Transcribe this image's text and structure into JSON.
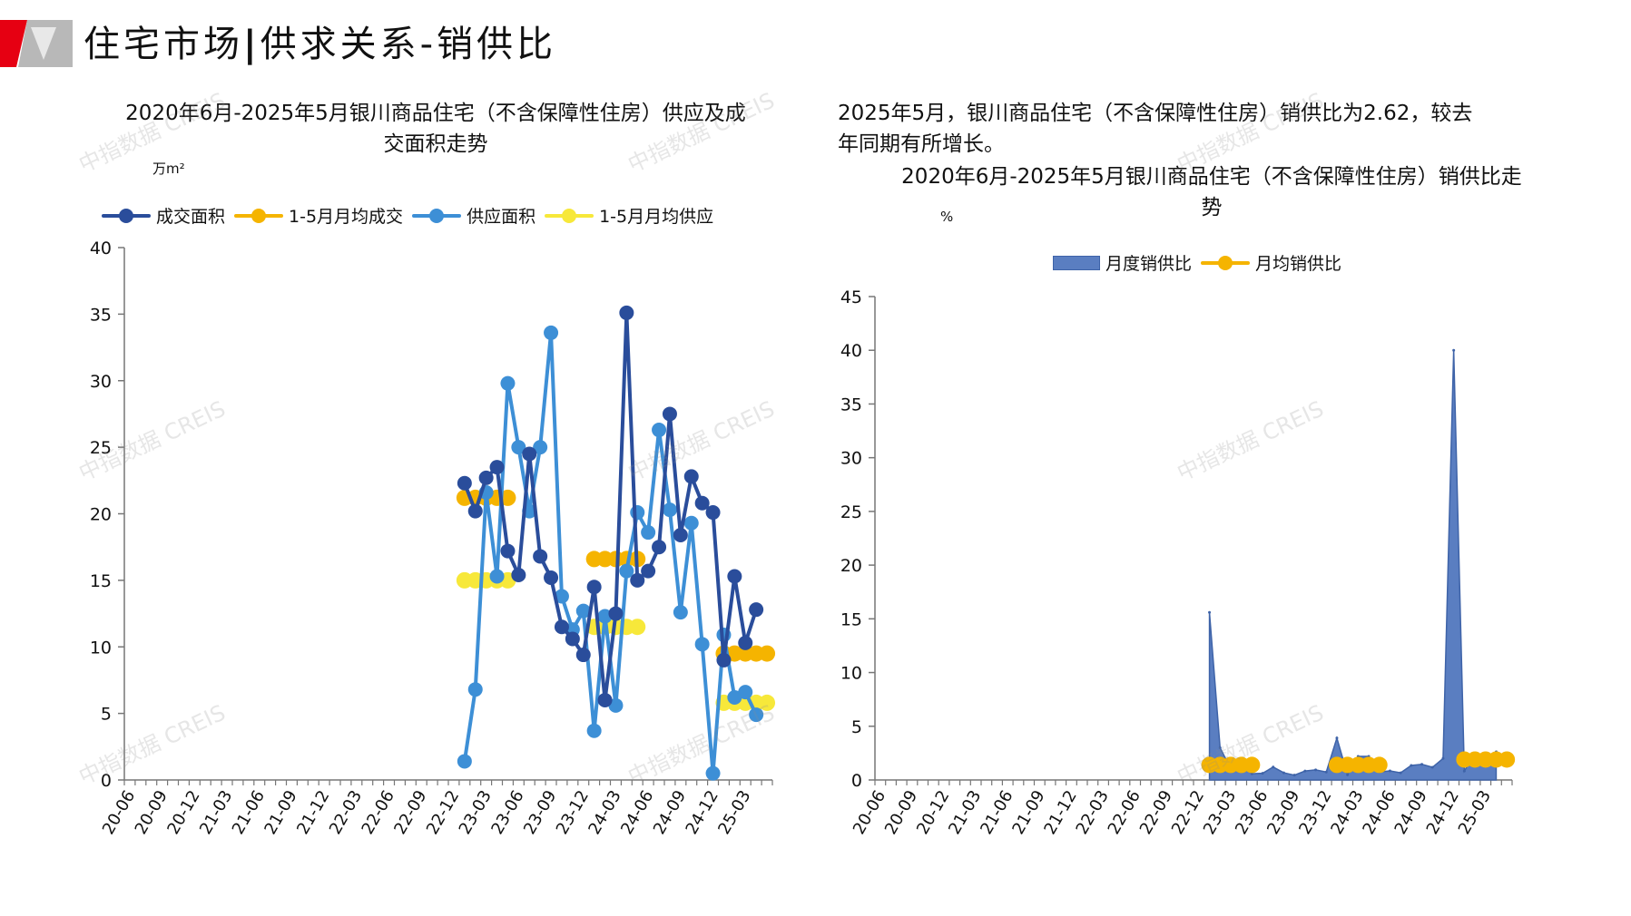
{
  "page": {
    "title_part1": "住宅市场",
    "title_sep": "|",
    "title_part2": "供求关系-销供比"
  },
  "watermark_text": "中指数据 CREIS",
  "left_chart": {
    "title_line1": "2020年6月-2025年5月银川商品住宅（不含保障性住房）供应及成",
    "title_line2": "交面积走势",
    "unit": "万m²"
  },
  "right_chart": {
    "summary_line1": "2025年5月，银川商品住宅（不含保障性住房）销供比为2.62，较去",
    "summary_line2": "年同期有所增长。",
    "title_line1": "2020年6月-2025年5月银川商品住宅（不含保障性住房）销供比走",
    "title_line2": "势",
    "unit": "%"
  },
  "colors": {
    "deal": "#2a4d9b",
    "supply": "#3d8fd6",
    "avg_deal": "#f5b400",
    "avg_supply": "#f7e83a",
    "ratio_fill": "#5a7ec1",
    "ratio_avg": "#f5b400"
  },
  "chart_data": [
    {
      "type": "line",
      "id": "supply-deal",
      "title": "2020年6月-2025年5月银川商品住宅（不含保障性住房）供应及成交面积走势",
      "ylabel": "万m²",
      "ylim": [
        0,
        40
      ],
      "yticks": [
        0,
        5,
        10,
        15,
        20,
        25,
        30,
        35,
        40
      ],
      "x_labels": [
        "20-06",
        "20-09",
        "20-12",
        "21-03",
        "21-06",
        "21-09",
        "21-12",
        "22-03",
        "22-06",
        "22-09",
        "22-12",
        "23-03",
        "23-06",
        "23-09",
        "23-12",
        "24-03",
        "24-06",
        "24-09",
        "24-12",
        "25-03"
      ],
      "x_label_start": 0,
      "x_label_step": 3,
      "n_points": 60,
      "data_start_index": 31,
      "series": [
        {
          "name": "成交面积",
          "values": [
            22.3,
            20.2,
            22.7,
            23.5,
            17.2,
            15.4,
            24.5,
            16.8,
            15.2,
            11.5,
            10.6,
            9.4,
            14.5,
            6.0,
            12.5,
            35.1,
            15.0,
            15.7,
            17.5,
            27.5,
            18.4,
            22.8,
            20.8,
            20.1,
            9.0,
            15.3,
            10.3,
            12.8
          ]
        },
        {
          "name": "供应面积",
          "values": [
            1.4,
            6.8,
            21.6,
            15.3,
            29.8,
            25.0,
            20.2,
            25.0,
            33.6,
            13.8,
            11.3,
            12.7,
            3.7,
            12.3,
            5.6,
            15.7,
            20.1,
            18.6,
            26.3,
            20.3,
            12.6,
            19.3,
            10.2,
            0.5,
            10.9,
            6.2,
            6.6,
            4.9
          ]
        },
        {
          "name": "1-5月月均成交",
          "segments": [
            {
              "start": 31,
              "end": 35,
              "value": 21.2
            },
            {
              "start": 43,
              "end": 47,
              "value": 16.6
            },
            {
              "start": 55,
              "end": 59,
              "value": 9.5
            }
          ]
        },
        {
          "name": "1-5月月均供应",
          "segments": [
            {
              "start": 31,
              "end": 35,
              "value": 15.0
            },
            {
              "start": 43,
              "end": 47,
              "value": 11.5
            },
            {
              "start": 55,
              "end": 59,
              "value": 5.8
            }
          ]
        }
      ]
    },
    {
      "type": "area",
      "id": "ratio",
      "title": "2020年6月-2025年5月银川商品住宅（不含保障性住房）销供比走势",
      "ylabel": "%",
      "ylim": [
        0,
        45
      ],
      "yticks": [
        0,
        5,
        10,
        15,
        20,
        25,
        30,
        35,
        40,
        45
      ],
      "x_labels": [
        "20-06",
        "20-09",
        "20-12",
        "21-03",
        "21-06",
        "21-09",
        "21-12",
        "22-03",
        "22-06",
        "22-09",
        "22-12",
        "23-03",
        "23-06",
        "23-09",
        "23-12",
        "24-03",
        "24-06",
        "24-09",
        "24-12",
        "25-03"
      ],
      "x_label_start": 0,
      "x_label_step": 3,
      "n_points": 60,
      "data_start_index": 31,
      "series": [
        {
          "name": "月度销供比",
          "values": [
            15.6,
            3.0,
            1.05,
            1.5,
            0.58,
            0.62,
            1.2,
            0.67,
            0.45,
            0.83,
            0.94,
            0.74,
            3.9,
            0.49,
            2.2,
            2.2,
            0.75,
            0.84,
            0.67,
            1.35,
            1.46,
            1.18,
            2.0,
            40.0,
            0.83,
            2.5,
            1.56,
            2.62
          ]
        },
        {
          "name": "月均销供比",
          "segments": [
            {
              "start": 31,
              "end": 35,
              "value": 1.4
            },
            {
              "start": 43,
              "end": 47,
              "value": 1.4
            },
            {
              "start": 55,
              "end": 59,
              "value": 1.9
            }
          ]
        }
      ]
    }
  ]
}
